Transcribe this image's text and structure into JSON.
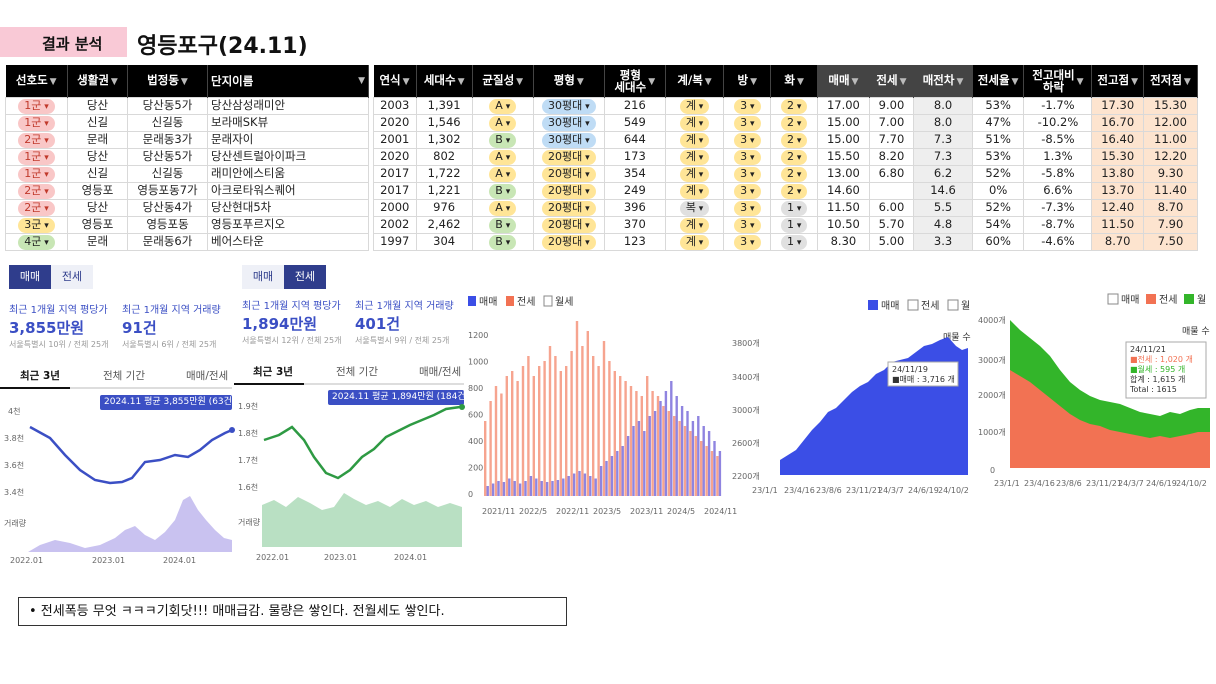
{
  "page": {
    "tag": "결과 분석",
    "title": "영등포구(24.11)"
  },
  "table": {
    "headers_left": [
      "선호도",
      "생활권",
      "법정동",
      "단지이름"
    ],
    "headers_right": [
      "연식",
      "세대수",
      "균질성",
      "평형",
      "평형\n세대수",
      "계/복",
      "방",
      "화",
      "매매",
      "전세",
      "매전차",
      "전세율",
      "전고대비\n하락",
      "전고점",
      "전저점"
    ],
    "rows": [
      {
        "pref": "1군",
        "area": "당산",
        "dong": "당산동5가",
        "name": "당산삼성래미안",
        "year": "2003",
        "hh": "1,391",
        "uni": "A",
        "size": "30평대",
        "shh": "216",
        "type": "계",
        "room": "3",
        "bath": "2",
        "sale": "17.00",
        "jeonse": "9.00",
        "gap": "8.0",
        "ratio": "53%",
        "drop": "-1.7%",
        "high": "17.30",
        "low": "15.30"
      },
      {
        "pref": "1군",
        "area": "신길",
        "dong": "신길동",
        "name": "보라매SK뷰",
        "year": "2020",
        "hh": "1,546",
        "uni": "A",
        "size": "30평대",
        "shh": "549",
        "type": "계",
        "room": "3",
        "bath": "2",
        "sale": "15.00",
        "jeonse": "7.00",
        "gap": "8.0",
        "ratio": "47%",
        "drop": "-10.2%",
        "high": "16.70",
        "low": "12.00"
      },
      {
        "pref": "2군",
        "area": "문래",
        "dong": "문래동3가",
        "name": "문래자이",
        "year": "2001",
        "hh": "1,302",
        "uni": "B",
        "size": "30평대",
        "shh": "644",
        "type": "계",
        "room": "3",
        "bath": "2",
        "sale": "15.00",
        "jeonse": "7.70",
        "gap": "7.3",
        "ratio": "51%",
        "drop": "-8.5%",
        "high": "16.40",
        "low": "11.00"
      },
      {
        "pref": "1군",
        "area": "당산",
        "dong": "당산동5가",
        "name": "당산센트럴아이파크",
        "year": "2020",
        "hh": "802",
        "uni": "A",
        "size": "20평대",
        "shh": "173",
        "type": "계",
        "room": "3",
        "bath": "2",
        "sale": "15.50",
        "jeonse": "8.20",
        "gap": "7.3",
        "ratio": "53%",
        "drop": "1.3%",
        "high": "15.30",
        "low": "12.20"
      },
      {
        "pref": "1군",
        "area": "신길",
        "dong": "신길동",
        "name": "래미안에스티움",
        "year": "2017",
        "hh": "1,722",
        "uni": "A",
        "size": "20평대",
        "shh": "354",
        "type": "계",
        "room": "3",
        "bath": "2",
        "sale": "13.00",
        "jeonse": "6.80",
        "gap": "6.2",
        "ratio": "52%",
        "drop": "-5.8%",
        "high": "13.80",
        "low": "9.30"
      },
      {
        "pref": "2군",
        "area": "영등포",
        "dong": "영등포동7가",
        "name": "아크로타워스퀘어",
        "year": "2017",
        "hh": "1,221",
        "uni": "B",
        "size": "20평대",
        "shh": "249",
        "type": "계",
        "room": "3",
        "bath": "2",
        "sale": "14.60",
        "jeonse": "",
        "gap": "14.6",
        "ratio": "0%",
        "drop": "6.6%",
        "high": "13.70",
        "low": "11.40"
      },
      {
        "pref": "2군",
        "area": "당산",
        "dong": "당산동4가",
        "name": "당산현대5차",
        "year": "2000",
        "hh": "976",
        "uni": "A",
        "size": "20평대",
        "shh": "396",
        "type": "복",
        "room": "3",
        "bath": "1",
        "sale": "11.50",
        "jeonse": "6.00",
        "gap": "5.5",
        "ratio": "52%",
        "drop": "-7.3%",
        "high": "12.40",
        "low": "8.70"
      },
      {
        "pref": "3군",
        "area": "영등포",
        "dong": "영등포동",
        "name": "영등포푸르지오",
        "year": "2002",
        "hh": "2,462",
        "uni": "B",
        "size": "20평대",
        "shh": "370",
        "type": "계",
        "room": "3",
        "bath": "1",
        "sale": "10.50",
        "jeonse": "5.70",
        "gap": "4.8",
        "ratio": "54%",
        "drop": "-8.7%",
        "high": "11.50",
        "low": "7.90"
      },
      {
        "pref": "4군",
        "area": "문래",
        "dong": "문래동6가",
        "name": "베어스타운",
        "year": "1997",
        "hh": "304",
        "uni": "B",
        "size": "20평대",
        "shh": "123",
        "type": "계",
        "room": "3",
        "bath": "1",
        "sale": "8.30",
        "jeonse": "5.00",
        "gap": "3.3",
        "ratio": "60%",
        "drop": "-4.6%",
        "high": "8.70",
        "low": "7.50"
      }
    ]
  },
  "panel1": {
    "seg_on": "매매",
    "seg_off": "전세",
    "lbl1": "최근 1개월 지역 평당가",
    "lbl2": "최근 1개월 지역 거래량",
    "val1": "3,855만원",
    "val2": "91건",
    "sub1": "서울특별시 10위 / 전체 25개",
    "sub2": "서울특별시 6위 / 전체 25개",
    "tab1": "최근 3년",
    "tab2": "전체 기간",
    "tab3": "매매/전세",
    "tooltip": "2024.11 평균 3,855만원 (63건)",
    "yt": [
      "4천",
      "3.8천",
      "3.6천",
      "3.4천"
    ],
    "vol": "거래량",
    "xt": [
      "2022.01",
      "2023.01",
      "2024.01"
    ]
  },
  "panel2": {
    "seg_off": "매매",
    "seg_on": "전세",
    "lbl1": "최근 1개월 지역 평당가",
    "lbl2": "최근 1개월 지역 거래량",
    "val1": "1,894만원",
    "val2": "401건",
    "sub1": "서울특별시 12위 / 전체 25개",
    "sub2": "서울특별시 9위 / 전체 25개",
    "tab1": "최근 3년",
    "tab2": "전체 기간",
    "tab3": "매매/전세",
    "tooltip": "2024.11 평균 1,894만원 (184건)",
    "yt": [
      "1.9천",
      "1.8천",
      "1.7천",
      "1.6천"
    ],
    "vol": "거래량",
    "xt": [
      "2022.01",
      "2023.01",
      "2024.01"
    ]
  },
  "bar_chart": {
    "legend": [
      "매매",
      "전세",
      "월세"
    ],
    "yt": [
      "1200",
      "1000",
      "800",
      "600",
      "400",
      "200",
      "0"
    ],
    "xt": [
      "2021/11",
      "2022/5",
      "2022/11",
      "2023/5",
      "2023/11",
      "2024/5",
      "2024/11"
    ]
  },
  "area1": {
    "legend": [
      "매매",
      "전세",
      "월"
    ],
    "unit": "매물 수",
    "yt": [
      "3800개",
      "3400개",
      "3000개",
      "2600개",
      "2200개"
    ],
    "xt": [
      "23/1/1",
      "23/4/16",
      "23/8/6",
      "23/11/21",
      "24/3/7",
      "24/6/19",
      "24/10/2"
    ],
    "tip_date": "24/11/19",
    "tip_val": "■매매 : 3,716 개"
  },
  "area2": {
    "legend": [
      "매매",
      "전세",
      "월"
    ],
    "unit": "매물 수",
    "yt": [
      "4000개",
      "3000개",
      "2000개",
      "1000개",
      "0"
    ],
    "xt": [
      "23/1/1",
      "23/4/16",
      "23/8/6",
      "23/11/21",
      "24/3/7",
      "24/6/19",
      "24/10/2"
    ],
    "tip": [
      "24/11/21",
      "■전세 : 1,020 개",
      "■월세 : 595 개",
      "합계 : 1,615 개",
      "Total : 1615"
    ]
  },
  "note": "• 전세폭등 무엇 ㅋㅋㅋ기회닷!!! 매매급감. 물량은 쌓인다. 전월세도 쌓인다.",
  "colors": {
    "accent": "#3b4fc4",
    "sale": "#3b4ee6",
    "jeonse": "#f27253",
    "wolse": "#33b52a"
  }
}
